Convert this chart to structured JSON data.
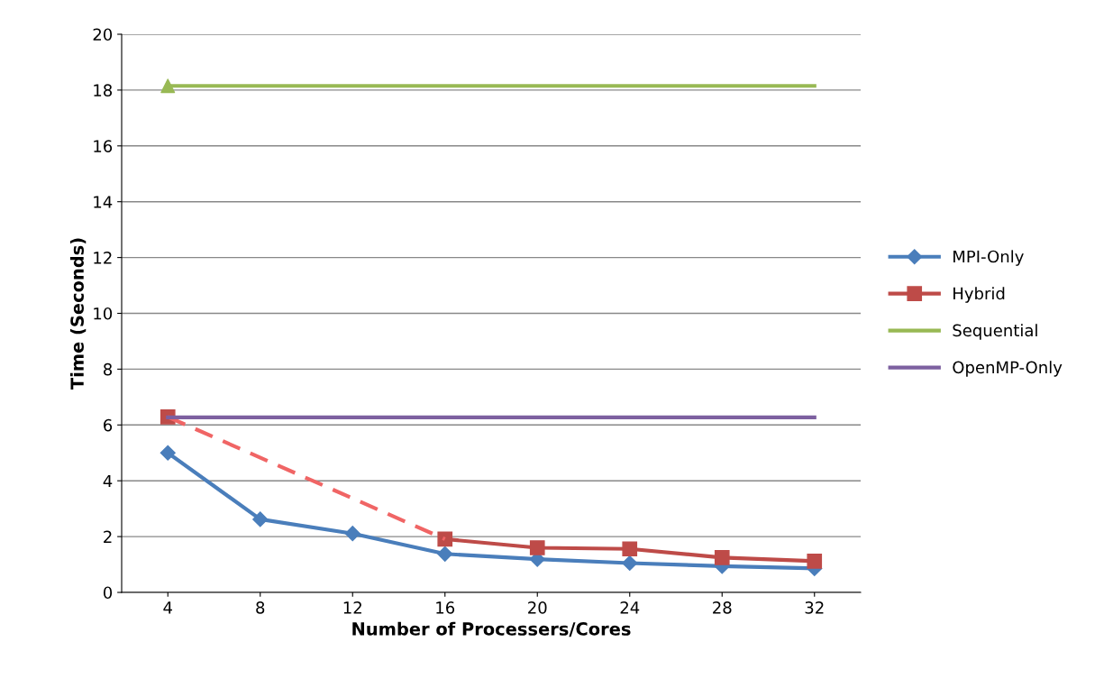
{
  "chart_data": {
    "type": "line",
    "xlabel": "Number of Processers/Cores",
    "ylabel": "Time (Seconds)",
    "categories": [
      "4",
      "8",
      "12",
      "16",
      "20",
      "24",
      "28",
      "32"
    ],
    "series": [
      {
        "name": "MPI-Only",
        "color": "#4a7ebb",
        "marker": "diamond",
        "values": [
          5.0,
          2.62,
          2.11,
          1.38,
          1.19,
          1.05,
          0.94,
          0.86
        ]
      },
      {
        "name": "Hybrid",
        "color": "#be4b48",
        "marker": "square",
        "values": [
          6.29,
          null,
          null,
          1.91,
          1.6,
          1.56,
          1.25,
          1.12
        ]
      },
      {
        "color": "#f06565",
        "line_style": "dashed",
        "marker": "none",
        "values": [
          6.29,
          null,
          null,
          1.91,
          null,
          null,
          null,
          null
        ]
      },
      {
        "name": "Sequential",
        "color": "#98b954",
        "marker": "none",
        "values": [
          18.15,
          18.15,
          18.15,
          18.15,
          18.15,
          18.15,
          18.15,
          18.15
        ]
      },
      {
        "type": "scatter",
        "color": "#98b954",
        "marker": "triangle",
        "values": [
          18.15,
          null,
          null,
          null,
          null,
          null,
          null,
          null
        ]
      },
      {
        "name": "OpenMP-Only",
        "color": "#7d60a0",
        "marker": "none",
        "values": [
          6.27,
          6.27,
          6.27,
          6.27,
          6.27,
          6.27,
          6.27,
          6.27
        ]
      }
    ],
    "ylim": [
      0,
      20
    ],
    "yticks": [
      0,
      2,
      4,
      6,
      8,
      10,
      12,
      14,
      16,
      18,
      20
    ],
    "grid": "y",
    "legend": "right"
  }
}
